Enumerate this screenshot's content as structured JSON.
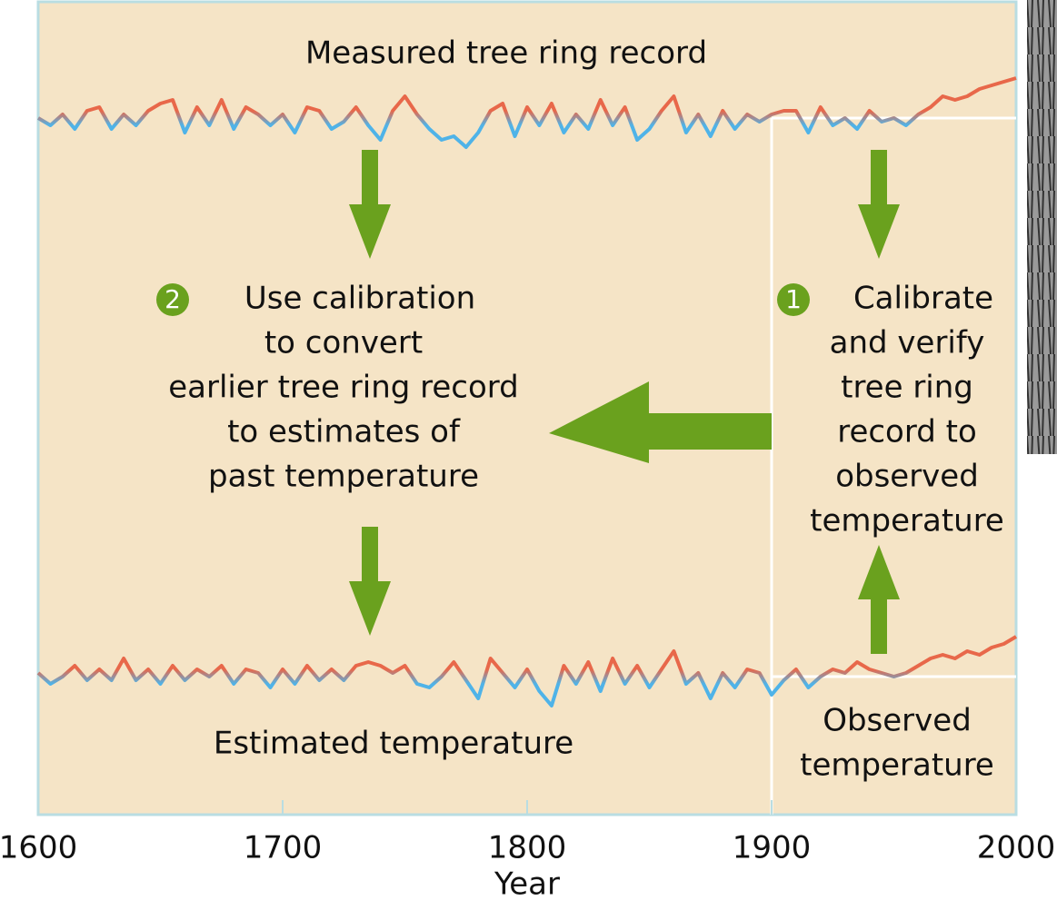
{
  "chart_data": {
    "type": "line",
    "xlabel": "Year",
    "x": [
      1600,
      1605,
      1610,
      1615,
      1620,
      1625,
      1630,
      1635,
      1640,
      1645,
      1650,
      1655,
      1660,
      1665,
      1670,
      1675,
      1680,
      1685,
      1690,
      1695,
      1700,
      1705,
      1710,
      1715,
      1720,
      1725,
      1730,
      1735,
      1740,
      1745,
      1750,
      1755,
      1760,
      1765,
      1770,
      1775,
      1780,
      1785,
      1790,
      1795,
      1800,
      1805,
      1810,
      1815,
      1820,
      1825,
      1830,
      1835,
      1840,
      1845,
      1850,
      1855,
      1860,
      1865,
      1870,
      1875,
      1880,
      1885,
      1890,
      1895,
      1900,
      1905,
      1910,
      1915,
      1920,
      1925,
      1930,
      1935,
      1940,
      1945,
      1950,
      1955,
      1960,
      1965,
      1970,
      1975,
      1980,
      1985,
      1990,
      1995,
      2000
    ],
    "xlim": [
      1600,
      2000
    ],
    "xticks": [
      1600,
      1700,
      1800,
      1900,
      2000
    ],
    "ylim": [
      -1.5,
      1.5
    ],
    "color_above": "#e8684a",
    "color_below": "#4fb3e8",
    "series": [
      {
        "name": "Measured tree ring record",
        "values": [
          0,
          -0.2,
          0.1,
          -0.3,
          0.2,
          0.3,
          -0.3,
          0.1,
          -0.2,
          0.2,
          0.4,
          0.5,
          -0.4,
          0.3,
          -0.2,
          0.5,
          -0.3,
          0.3,
          0.1,
          -0.2,
          0.1,
          -0.4,
          0.3,
          0.2,
          -0.3,
          -0.1,
          0.3,
          -0.2,
          -0.6,
          0.2,
          0.6,
          0.1,
          -0.3,
          -0.6,
          -0.5,
          -0.8,
          -0.4,
          0.2,
          0.4,
          -0.5,
          0.3,
          -0.2,
          0.4,
          -0.4,
          0.1,
          -0.3,
          0.5,
          -0.2,
          0.3,
          -0.6,
          -0.3,
          0.2,
          0.6,
          -0.4,
          0.1,
          -0.5,
          0.2,
          -0.3,
          0.1,
          -0.1,
          0.1,
          0.2,
          0.2,
          -0.4,
          0.3,
          -0.2,
          0,
          -0.3,
          0.2,
          -0.1,
          0,
          -0.2,
          0.1,
          0.3,
          0.6,
          0.5,
          0.6,
          0.8,
          0.9,
          1.0,
          1.1
        ]
      },
      {
        "name": "Estimated temperature",
        "values": [
          0.1,
          -0.2,
          0,
          0.3,
          -0.1,
          0.2,
          -0.1,
          0.5,
          -0.1,
          0.2,
          -0.2,
          0.3,
          -0.1,
          0.2,
          0,
          0.3,
          -0.2,
          0.2,
          0.1,
          -0.3,
          0.2,
          -0.2,
          0.3,
          -0.1,
          0.2,
          -0.1,
          0.3,
          0.4,
          0.3,
          0.1,
          0.3,
          -0.2,
          -0.3,
          0,
          0.4,
          -0.1,
          -0.6,
          0.5,
          0.1,
          -0.3,
          0.2,
          -0.4,
          -0.8,
          0.3,
          -0.2,
          0.4,
          -0.4,
          0.5,
          -0.2,
          0.3,
          -0.3,
          0.2,
          0.7,
          -0.2,
          0.1,
          -0.6,
          0.1,
          -0.3,
          0.2,
          0.1,
          -0.5,
          -0.1,
          0.2,
          -0.3,
          0,
          0.2,
          0.1,
          0.4,
          0.2,
          0.1,
          0,
          0.1,
          0.3,
          0.5,
          0.6,
          0.5,
          0.7,
          0.6,
          0.8,
          0.9,
          1.1
        ]
      }
    ],
    "annotations": [
      {
        "number": 2,
        "lines": [
          "Use calibration",
          "to convert",
          "earlier tree ring record",
          "to estimates of",
          "past temperature"
        ]
      },
      {
        "number": 1,
        "lines": [
          "Calibrate",
          "and verify",
          "tree ring",
          "record to",
          "observed",
          "temperature"
        ]
      },
      {
        "lines": [
          "Observed",
          "temperature"
        ]
      }
    ]
  }
}
